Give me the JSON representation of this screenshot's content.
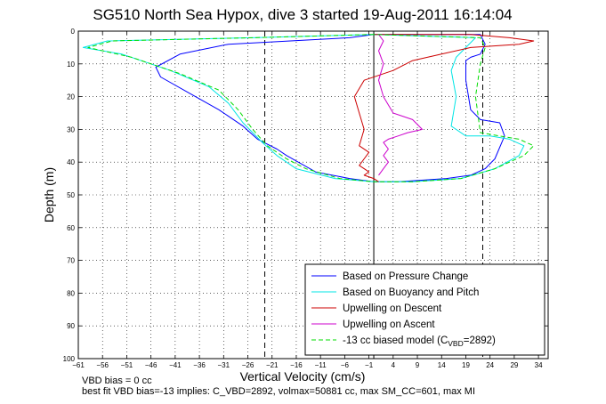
{
  "chart_data": {
    "type": "line",
    "title": "SG510 North Sea Hypox, dive 3 started 19-Aug-2011 16:14:04",
    "xlabel": "Vertical Velocity (cm/s)",
    "ylabel": "Depth (m)",
    "xlim": [
      -61,
      36
    ],
    "ylim": [
      0,
      100
    ],
    "y_reversed": true,
    "grid": true,
    "xticks": [
      -61,
      -56,
      -51,
      -46,
      -41,
      -36,
      -31,
      -26,
      -21,
      -16,
      -11,
      -6,
      -1,
      4,
      9,
      14,
      19,
      24,
      29,
      34
    ],
    "yticks": [
      0,
      10,
      20,
      30,
      40,
      50,
      60,
      70,
      80,
      90,
      100
    ],
    "legend_position": "bottom-right",
    "reference_lines": [
      {
        "x": -22.5,
        "style": "dashed",
        "color": "#000000"
      },
      {
        "x": 22.5,
        "style": "dashed",
        "color": "#000000"
      },
      {
        "x": 0,
        "style": "solid",
        "color": "#000000"
      }
    ],
    "series": [
      {
        "name": "Based on Pressure Change",
        "color": "#0000ff",
        "style": "solid",
        "x": [
          0,
          -5,
          -30,
          -40,
          -45,
          -44,
          -38,
          -32,
          -27,
          -24,
          -20,
          -18,
          -12,
          -5,
          0,
          5,
          15,
          20,
          23,
          25,
          27,
          26,
          22,
          20,
          19,
          19,
          20,
          22,
          23,
          22,
          4,
          0
        ],
        "y": [
          1,
          2,
          4,
          7,
          11,
          14,
          19,
          24,
          29,
          33,
          36,
          38,
          43,
          45,
          46,
          46,
          45,
          44,
          42,
          39,
          32,
          28,
          27,
          24,
          15,
          9,
          8,
          7,
          4,
          1,
          1,
          1
        ]
      },
      {
        "name": "Based on Buoyancy and Pitch",
        "color": "#00e5e5",
        "style": "solid",
        "x": [
          0,
          -25,
          -55,
          -60,
          -52,
          -42,
          -34,
          -30,
          -27,
          -23,
          -20,
          -16,
          -8,
          0,
          8,
          18,
          25,
          30,
          31,
          28,
          24,
          19,
          16,
          17,
          16,
          17,
          19,
          21,
          0
        ],
        "y": [
          1,
          2,
          3,
          5,
          7,
          12,
          17,
          22,
          28,
          34,
          38,
          42,
          45,
          46,
          46,
          45,
          42,
          38,
          35,
          33,
          32,
          32,
          29,
          20,
          12,
          8,
          5,
          2,
          1
        ]
      },
      {
        "name": "Upwelling on Descent",
        "color": "#cc0000",
        "style": "solid",
        "x": [
          0,
          10,
          20,
          28,
          33,
          30,
          20,
          14,
          8,
          4,
          -2,
          -4,
          -3,
          -2,
          -3,
          -1,
          -2,
          -3,
          -2,
          -1,
          -2,
          0,
          1
        ],
        "y": [
          1,
          1,
          1,
          2,
          3,
          4,
          5,
          7,
          9,
          12,
          15,
          20,
          25,
          30,
          35,
          37,
          39,
          41,
          42,
          43,
          44,
          45,
          46
        ]
      },
      {
        "name": "Upwelling on Ascent",
        "color": "#cc00cc",
        "style": "solid",
        "x": [
          1,
          2,
          3,
          2,
          3,
          2,
          3,
          5,
          7,
          10,
          8,
          4,
          2,
          1,
          2,
          1,
          2,
          1
        ],
        "y": [
          44,
          42,
          40,
          38,
          36,
          34,
          33,
          32,
          31,
          30,
          27,
          25,
          20,
          15,
          10,
          6,
          3,
          1
        ]
      },
      {
        "name": "-13 cc biased model (C_VBD=2892)",
        "color": "#00dd00",
        "style": "dashed",
        "x": [
          0,
          -25,
          -54,
          -59,
          -50,
          -40,
          -32,
          -28,
          -25,
          -22,
          -18,
          -14,
          -7,
          0,
          8,
          18,
          25,
          31,
          33,
          30,
          26,
          22,
          21,
          22,
          23,
          22,
          0
        ],
        "y": [
          1,
          2,
          3,
          5,
          8,
          13,
          18,
          24,
          30,
          35,
          39,
          42,
          45,
          46,
          46,
          45,
          42,
          38,
          35,
          33,
          32,
          31,
          20,
          10,
          5,
          2,
          1
        ]
      }
    ]
  },
  "legend_entries": {
    "e1": "Based on Pressure Change",
    "e2": "Based on Buoyancy and Pitch",
    "e3": "Upwelling on Descent",
    "e4": "Upwelling on Ascent",
    "e5_main": "-13 cc biased model (C",
    "e5_sub": "VBD",
    "e5_tail": "=2892)"
  },
  "footer": {
    "line1": "VBD bias = 0 cc",
    "line2": "best fit VBD bias=-13 implies: C_VBD=2892, volmax=50881 cc, max SM_CC=601, max MI"
  }
}
